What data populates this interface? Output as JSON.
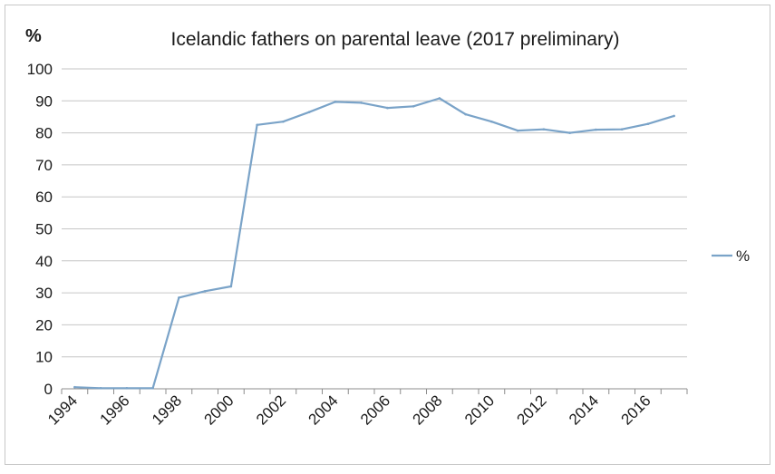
{
  "chart_data": {
    "type": "line",
    "title": "Icelandic fathers on parental leave (2017 preliminary)",
    "ylabel": "%",
    "xlabel": "",
    "ylim": [
      0,
      100
    ],
    "yticks": [
      0,
      10,
      20,
      30,
      40,
      50,
      60,
      70,
      80,
      90,
      100
    ],
    "x": [
      1994,
      1995,
      1996,
      1997,
      1998,
      1999,
      2000,
      2001,
      2002,
      2003,
      2004,
      2005,
      2006,
      2007,
      2008,
      2009,
      2010,
      2011,
      2012,
      2013,
      2014,
      2015,
      2016,
      2017
    ],
    "xticks": [
      "1994",
      "1996",
      "1998",
      "2000",
      "2002",
      "2004",
      "2006",
      "2008",
      "2010",
      "2012",
      "2014",
      "2016"
    ],
    "grid": true,
    "legend_position": "right",
    "series": [
      {
        "name": "%",
        "color": "#7aa3c8",
        "values": [
          0.5,
          0.2,
          0.2,
          0.2,
          28.5,
          30.5,
          32.0,
          82.5,
          83.5,
          86.5,
          89.7,
          89.4,
          87.8,
          88.3,
          90.8,
          85.8,
          83.5,
          80.7,
          81.1,
          80.0,
          81.0,
          81.1,
          82.8,
          85.3
        ]
      }
    ]
  }
}
